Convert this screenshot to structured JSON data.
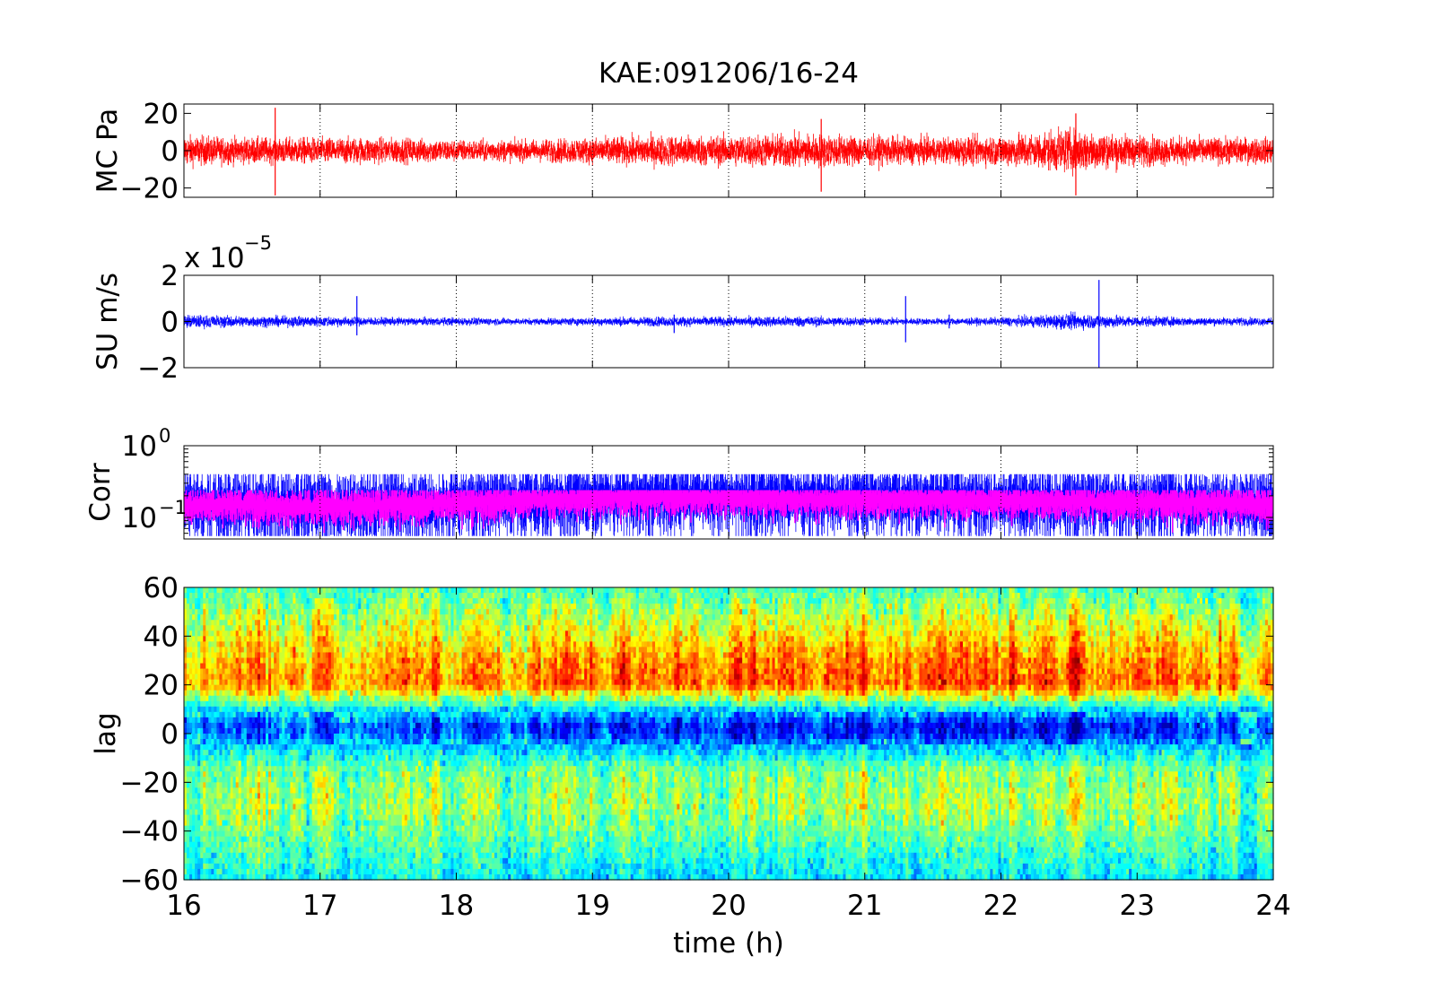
{
  "title": "KAE:091206/16-24",
  "chart_data": [
    {
      "type": "line",
      "ylabel": "MC Pa",
      "xlim": [
        16,
        24
      ],
      "ylim": [
        -25,
        25
      ],
      "yticks": [
        -20,
        0,
        20
      ],
      "ytick_labels": [
        "−20",
        "0",
        "20"
      ],
      "grid": "vertical-dotted",
      "series": [
        {
          "color": "#ff0000",
          "envelope": {
            "x": [
              16,
              16.5,
              17,
              17.5,
              18,
              18.5,
              19,
              19.5,
              20,
              20.5,
              21,
              21.5,
              22,
              22.5,
              23,
              23.5,
              24
            ],
            "amplitude": [
              7,
              6,
              6,
              6,
              5,
              5,
              6,
              7,
              7,
              8,
              7,
              6,
              7,
              10,
              7,
              6,
              6
            ]
          },
          "spikes": [
            {
              "x": 16.67,
              "min": -24,
              "max": 23
            },
            {
              "x": 20.68,
              "min": -22,
              "max": 17
            },
            {
              "x": 22.55,
              "min": -24,
              "max": 20
            }
          ]
        }
      ]
    },
    {
      "type": "line",
      "ylabel": "SU m/s",
      "scale_label": "x 10",
      "scale_exponent": "−5",
      "xlim": [
        16,
        24
      ],
      "ylim": [
        -2,
        2
      ],
      "yticks": [
        -2,
        0,
        2
      ],
      "ytick_labels": [
        "−2",
        "0",
        "2"
      ],
      "grid": "vertical-dotted",
      "series": [
        {
          "color": "#0000ff",
          "envelope": {
            "x": [
              16,
              16.5,
              17,
              17.5,
              18,
              18.5,
              19,
              19.5,
              20,
              20.5,
              21,
              21.5,
              22,
              22.5,
              23,
              23.5,
              24
            ],
            "amplitude": [
              0.25,
              0.2,
              0.2,
              0.15,
              0.15,
              0.12,
              0.15,
              0.18,
              0.18,
              0.2,
              0.15,
              0.12,
              0.15,
              0.3,
              0.2,
              0.15,
              0.15
            ]
          },
          "spikes": [
            {
              "x": 17.27,
              "min": -0.6,
              "max": 1.1
            },
            {
              "x": 19.6,
              "min": -0.5,
              "max": 0.3
            },
            {
              "x": 21.3,
              "min": -0.9,
              "max": 1.1
            },
            {
              "x": 21.62,
              "min": -0.3,
              "max": 0.3
            },
            {
              "x": 22.72,
              "min": -2.0,
              "max": 1.8
            }
          ]
        }
      ]
    },
    {
      "type": "line",
      "ylabel": "Corr",
      "yscale": "log",
      "xlim": [
        16,
        24
      ],
      "ylim": [
        0.05,
        1
      ],
      "yticks": [
        0.1,
        1
      ],
      "ytick_labels": [
        {
          "base": "10",
          "exp": "−1"
        },
        {
          "base": "10",
          "exp": "0"
        }
      ],
      "grid": "vertical-dotted",
      "series": [
        {
          "color": "#0000ff",
          "center": [
            0.15,
            0.15,
            0.14,
            0.15,
            0.16,
            0.17,
            0.19,
            0.19,
            0.19,
            0.18,
            0.18,
            0.18,
            0.17,
            0.17,
            0.16,
            0.16,
            0.16
          ],
          "min": 0.055,
          "max": 0.4
        },
        {
          "color": "#ff00ff",
          "center": [
            0.15,
            0.15,
            0.14,
            0.15,
            0.16,
            0.17,
            0.19,
            0.19,
            0.19,
            0.18,
            0.18,
            0.18,
            0.17,
            0.17,
            0.16,
            0.16,
            0.16
          ],
          "min": 0.06,
          "max": 0.24
        }
      ],
      "x": [
        16,
        16.5,
        17,
        17.5,
        18,
        18.5,
        19,
        19.5,
        20,
        20.5,
        21,
        21.5,
        22,
        22.5,
        23,
        23.5,
        24
      ]
    },
    {
      "type": "heatmap",
      "ylabel": "lag",
      "xlabel": "time (h)",
      "xlim": [
        16,
        24
      ],
      "ylim": [
        -60,
        60
      ],
      "xticks": [
        16,
        17,
        18,
        19,
        20,
        21,
        22,
        23,
        24
      ],
      "yticks": [
        -60,
        -40,
        -20,
        0,
        20,
        40,
        60
      ],
      "ytick_labels": [
        "−60",
        "−40",
        "−20",
        "0",
        "20",
        "40",
        "60"
      ],
      "colormap": "jet",
      "bands": [
        {
          "lag": -60,
          "value": 0.35
        },
        {
          "lag": -45,
          "value": 0.45
        },
        {
          "lag": -30,
          "value": 0.55
        },
        {
          "lag": -15,
          "value": 0.5
        },
        {
          "lag": -5,
          "value": 0.3
        },
        {
          "lag": 0,
          "value": 0.15
        },
        {
          "lag": 4,
          "value": 0.15
        },
        {
          "lag": 10,
          "value": 0.35
        },
        {
          "lag": 20,
          "value": 0.8
        },
        {
          "lag": 30,
          "value": 0.75
        },
        {
          "lag": 45,
          "value": 0.6
        },
        {
          "lag": 60,
          "value": 0.45
        }
      ],
      "time_modulation": {
        "x": [
          16,
          17,
          18,
          19,
          20,
          21,
          22,
          23,
          24
        ],
        "strength": [
          0.8,
          0.8,
          0.85,
          1.0,
          1.05,
          1.0,
          1.0,
          0.95,
          0.85
        ]
      }
    }
  ]
}
